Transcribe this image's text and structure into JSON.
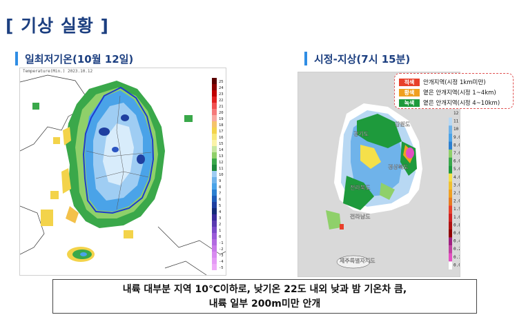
{
  "page": {
    "title": "[ 기상 실황 ]"
  },
  "left_section": {
    "title": "일최저기온(10월 12일)",
    "map_caption": "Temperature(Min.)   2023.10.12",
    "colorbar_labels": [
      "25",
      "24",
      "23",
      "22",
      "21",
      "20",
      "19",
      "18",
      "17",
      "16",
      "15",
      "14",
      "13",
      "12",
      "11",
      "10",
      "9",
      "8",
      "7",
      "6",
      "5",
      "4",
      "3",
      "2",
      "1",
      "0",
      "-1",
      "-2",
      "-3",
      "-4",
      "-5"
    ]
  },
  "right_section": {
    "title": "시정-지상(7시 15분)",
    "colorbar_labels": [
      "12",
      "11",
      "10",
      "9.0",
      "8.0",
      "7.0",
      "6.0",
      "5.0",
      "4.0",
      "3.0",
      "2.5",
      "2.0",
      "1.5",
      "1.0",
      "0.8",
      "0.6",
      "0.4",
      "0.2",
      "0.1",
      "0.0"
    ],
    "map_labels": [
      "강원도",
      "경기도",
      "경상북도",
      "전라북도",
      "전라남도",
      "제주특별자치도"
    ]
  },
  "legend": [
    {
      "chip": "적색",
      "text": "안개지역(시정 1km미만)",
      "color": "#e8402a"
    },
    {
      "chip": "황색",
      "text": "옅은 안개지역(시정 1~4km)",
      "color": "#f0a020"
    },
    {
      "chip": "녹색",
      "text": "옅은 안개지역(시정 4~10km)",
      "color": "#1e9a3c"
    }
  ],
  "summary": {
    "line1": "내륙 대부분 지역 10℃이하로, 낮기온 22도 내외 낮과 밤 기온차 큼,",
    "line2": "내륙 일부 200m미만 안개"
  }
}
